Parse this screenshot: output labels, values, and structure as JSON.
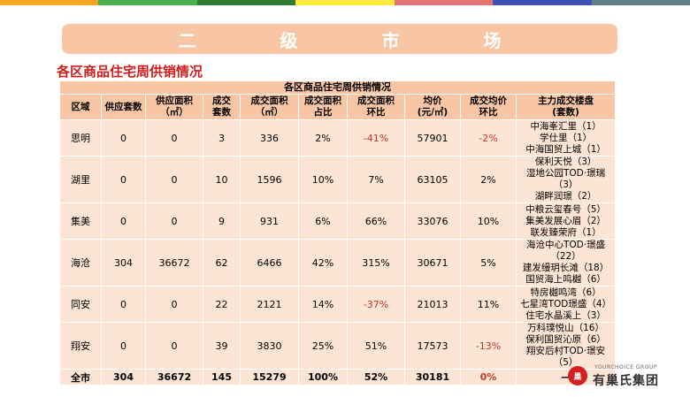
{
  "top_bar_colors": [
    "#f5a623",
    "#4caf50",
    "#2e7d32",
    "#ffeb3b",
    "#e57373",
    "#3f51b5",
    "#607d8b"
  ],
  "banner": {
    "title": "二 级 市 场"
  },
  "section_title": "各区商品住宅周供销情况",
  "table": {
    "caption": "各区商品住宅周供销情况",
    "headers": [
      {
        "line1": "区域",
        "line2": ""
      },
      {
        "line1": "供应套数",
        "line2": ""
      },
      {
        "line1": "供应面积",
        "line2": "（㎡）"
      },
      {
        "line1": "成交",
        "line2": "套数"
      },
      {
        "line1": "成交面积",
        "line2": "（㎡）"
      },
      {
        "line1": "成交面积",
        "line2": "占比"
      },
      {
        "line1": "成交面积",
        "line2": "环比"
      },
      {
        "line1": "均价",
        "line2": "(元/㎡)"
      },
      {
        "line1": "成交均价",
        "line2": "环比"
      },
      {
        "line1": "主力成交楼盘",
        "line2": "(套数)"
      }
    ],
    "rows": [
      {
        "district": "思明",
        "supply_units": "0",
        "supply_area": "0",
        "deal_units": "3",
        "deal_area": "336",
        "area_share": "2%",
        "area_mom": "-41%",
        "avg_price": "57901",
        "price_mom": "-2%",
        "projects": [
          "中海峯汇里（1）",
          "学仕里（1）",
          "中海国贸上城（1）"
        ]
      },
      {
        "district": "湖里",
        "supply_units": "0",
        "supply_area": "0",
        "deal_units": "10",
        "deal_area": "1596",
        "area_share": "10%",
        "area_mom": "7%",
        "avg_price": "63105",
        "price_mom": "2%",
        "projects": [
          "保利天悦（3）",
          "湿地公园TOD·璟瑞（3）",
          "湖畔润璟（2）"
        ]
      },
      {
        "district": "集美",
        "supply_units": "0",
        "supply_area": "0",
        "deal_units": "9",
        "deal_area": "931",
        "area_share": "6%",
        "area_mom": "66%",
        "avg_price": "33076",
        "price_mom": "10%",
        "projects": [
          "中粮云玺春号（5）",
          "集美发展心眉（2）",
          "联发臻荣府（1）"
        ]
      },
      {
        "district": "海沧",
        "supply_units": "304",
        "supply_area": "36672",
        "deal_units": "62",
        "deal_area": "6466",
        "area_share": "42%",
        "area_mom": "315%",
        "avg_price": "30671",
        "price_mom": "5%",
        "projects": [
          "海沧中心TOD·璟盛（22）",
          "建发缦玥长滩（18）",
          "国贸海上鸣樾（6）"
        ]
      },
      {
        "district": "同安",
        "supply_units": "0",
        "supply_area": "0",
        "deal_units": "22",
        "deal_area": "2121",
        "area_share": "14%",
        "area_mom": "-37%",
        "avg_price": "21013",
        "price_mom": "11%",
        "projects": [
          "特房樾鸣湾（6）",
          "七星湾TOD璟盛（4）",
          "住宅水晶溪上（3）"
        ]
      },
      {
        "district": "翔安",
        "supply_units": "0",
        "supply_area": "0",
        "deal_units": "39",
        "deal_area": "3830",
        "area_share": "25%",
        "area_mom": "51%",
        "avg_price": "17573",
        "price_mom": "-13%",
        "projects": [
          "万科璞悦山（16）",
          "保利国贸沁原（6）",
          "翔安后村TOD·璟安（5）"
        ]
      }
    ],
    "total": {
      "district": "全市",
      "supply_units": "304",
      "supply_area": "36672",
      "deal_units": "145",
      "deal_area": "15279",
      "area_share": "100%",
      "area_mom": "52%",
      "avg_price": "30181",
      "price_mom": "0%",
      "projects": "—"
    }
  },
  "logo": {
    "en": "YOURCHOICE GROUP",
    "cn": "有巢氏集团",
    "mark": "巢"
  },
  "colors": {
    "accent_red": "#d11b1b",
    "header_bg": "#f9c6a5",
    "row_bg": "#fde5d5",
    "negative": "#c0392b"
  }
}
